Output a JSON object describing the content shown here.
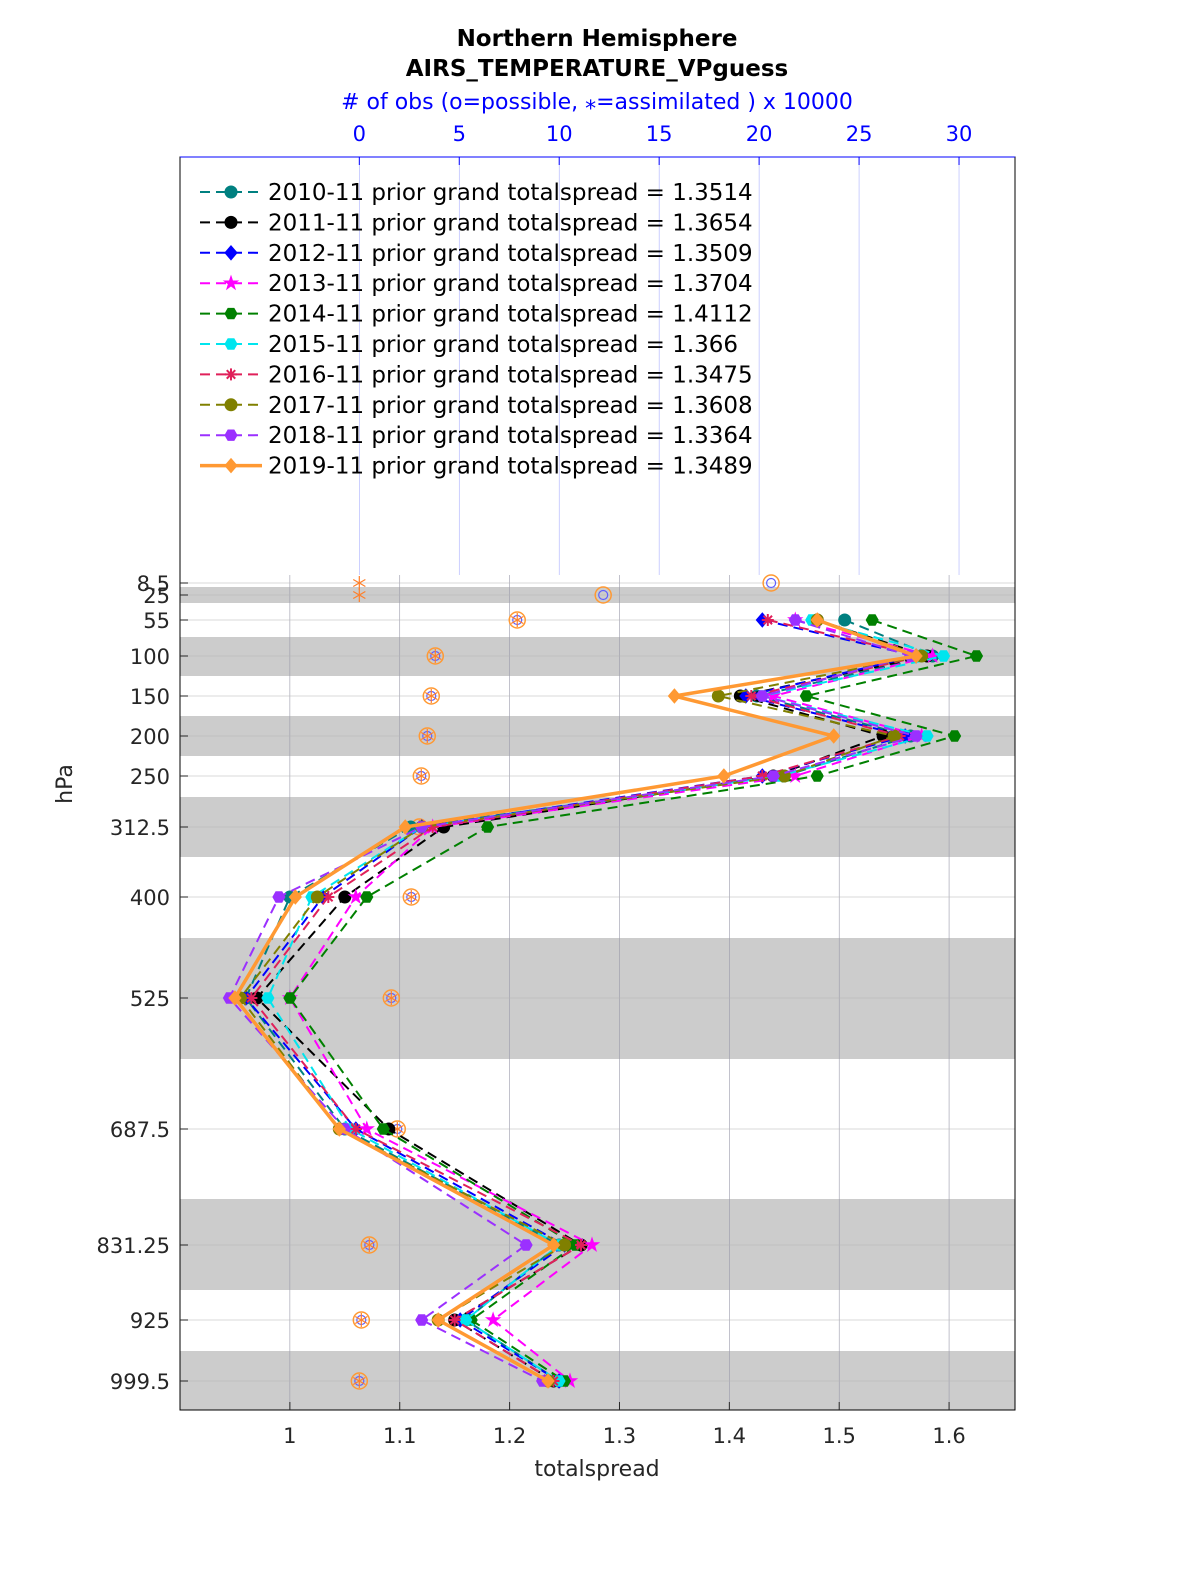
{
  "chart_data": {
    "type": "line",
    "title_lines": [
      "Northern Hemisphere",
      "AIRS_TEMPERATURE_VPguess"
    ],
    "top_axis_label": "# of obs (o=possible, ⁎=assimilated ) x 10000",
    "xlabel": "totalspread",
    "ylabel": "hPa",
    "xlim": [
      0.9,
      1.66
    ],
    "xticks": [
      1,
      1.1,
      1.2,
      1.3,
      1.4,
      1.5,
      1.6
    ],
    "top_xlim": [
      -8.97,
      32.8
    ],
    "top_xticks": [
      0,
      5,
      10,
      15,
      20,
      25,
      30
    ],
    "levels": [
      8.5,
      25,
      55,
      100,
      150,
      200,
      250,
      312.5,
      400,
      525,
      687.5,
      831.25,
      925,
      999.5
    ],
    "level_labels": [
      "8.5",
      "25",
      "55",
      "100",
      "150",
      "200",
      "250",
      "312.5",
      "400",
      "525",
      "687.5",
      "831.25",
      "925",
      "999.5"
    ],
    "grid": true,
    "legend_position": "top-left",
    "series": [
      {
        "name": "2010-11 prior grand totalspread = 1.3514",
        "color": "#008080",
        "marker": "circle",
        "dashed": true,
        "values": [
          null,
          null,
          1.505,
          1.585,
          1.425,
          1.565,
          1.45,
          1.11,
          1.0,
          0.96,
          1.05,
          1.245,
          1.16,
          1.245
        ]
      },
      {
        "name": "2011-11 prior grand totalspread = 1.3654",
        "color": "#000000",
        "marker": "circle",
        "dashed": true,
        "values": [
          null,
          null,
          1.48,
          1.58,
          1.41,
          1.54,
          1.44,
          1.14,
          1.05,
          0.97,
          1.09,
          1.265,
          1.15,
          1.24
        ]
      },
      {
        "name": "2012-11 prior grand totalspread = 1.3509",
        "color": "#0000ff",
        "marker": "diamond",
        "dashed": true,
        "values": [
          null,
          null,
          1.43,
          1.57,
          1.415,
          1.56,
          1.43,
          1.12,
          1.03,
          0.96,
          1.06,
          1.25,
          1.155,
          1.245
        ]
      },
      {
        "name": "2013-11 prior grand totalspread = 1.3704",
        "color": "#ff00ff",
        "marker": "star",
        "dashed": true,
        "values": [
          null,
          null,
          1.46,
          1.585,
          1.44,
          1.575,
          1.46,
          1.13,
          1.06,
          1.0,
          1.07,
          1.275,
          1.185,
          1.255
        ]
      },
      {
        "name": "2014-11 prior grand totalspread = 1.4112",
        "color": "#008000",
        "marker": "hexagon",
        "dashed": true,
        "values": [
          null,
          null,
          1.53,
          1.625,
          1.47,
          1.605,
          1.48,
          1.18,
          1.07,
          1.0,
          1.085,
          1.26,
          1.165,
          1.25
        ]
      },
      {
        "name": "2015-11 prior grand totalspread = 1.366",
        "color": "#00e5ee",
        "marker": "hexagon",
        "dashed": true,
        "values": [
          null,
          null,
          1.475,
          1.595,
          1.43,
          1.58,
          1.445,
          1.12,
          1.02,
          0.98,
          1.055,
          1.245,
          1.16,
          1.245
        ]
      },
      {
        "name": "2016-11 prior grand totalspread = 1.3475",
        "color": "#e0205a",
        "marker": "asterisk",
        "dashed": true,
        "values": [
          null,
          null,
          1.435,
          1.575,
          1.42,
          1.555,
          1.43,
          1.13,
          1.035,
          0.965,
          1.06,
          1.265,
          1.15,
          1.24
        ]
      },
      {
        "name": "2017-11 prior grand totalspread = 1.3608",
        "color": "#808000",
        "marker": "circle",
        "dashed": true,
        "values": [
          null,
          null,
          1.48,
          1.575,
          1.39,
          1.55,
          1.45,
          1.12,
          1.025,
          0.955,
          1.045,
          1.25,
          1.135,
          1.235
        ]
      },
      {
        "name": "2018-11 prior grand totalspread = 1.3364",
        "color": "#9b30ff",
        "marker": "hexagon",
        "dashed": true,
        "values": [
          null,
          null,
          1.46,
          1.565,
          1.43,
          1.57,
          1.44,
          1.12,
          0.99,
          0.945,
          1.05,
          1.215,
          1.12,
          1.23
        ]
      },
      {
        "name": "2019-11 prior grand totalspread = 1.3489",
        "color": "#ff9933",
        "marker": "diamond",
        "dashed": false,
        "values": [
          null,
          null,
          1.48,
          1.57,
          1.35,
          1.495,
          1.395,
          1.105,
          1.005,
          0.95,
          1.045,
          1.24,
          1.135,
          1.235
        ]
      }
    ],
    "obs_counts_x10000": {
      "levels": [
        8.5,
        25,
        55,
        100,
        150,
        200,
        250,
        312.5,
        400,
        525,
        687.5,
        831.25,
        925,
        999.5
      ],
      "possible": [
        20.6,
        12.2,
        7.9,
        3.8,
        3.6,
        3.4,
        3.1,
        3.0,
        2.6,
        1.6,
        1.9,
        0.5,
        0.1,
        0.0
      ],
      "assimilated": [
        0.0,
        0.0,
        7.9,
        3.8,
        3.6,
        3.4,
        3.1,
        3.0,
        2.6,
        1.6,
        1.9,
        0.5,
        0.1,
        0.0
      ]
    }
  }
}
